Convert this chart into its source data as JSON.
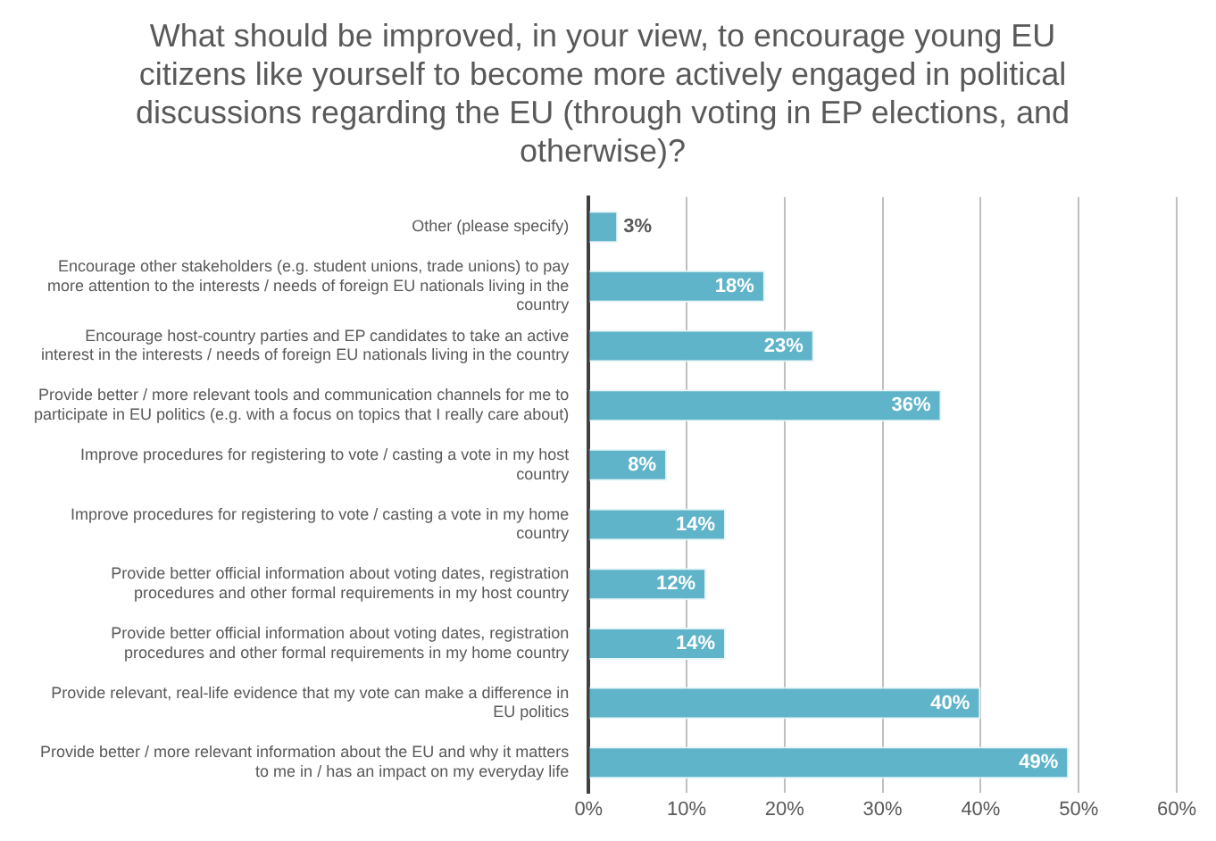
{
  "chart_data": {
    "type": "bar",
    "orientation": "horizontal",
    "title": "What should be improved, in your view, to encourage young EU citizens like yourself to become more actively engaged in political discussions regarding the EU (through voting in EP elections, and otherwise)?",
    "categories": [
      "Other (please specify)",
      "Encourage other stakeholders (e.g. student unions, trade unions) to pay more attention to the interests / needs of foreign EU nationals living in the country",
      "Encourage host-country parties and EP candidates to take an active interest in the interests / needs of foreign EU nationals living in the country",
      "Provide better / more relevant tools and communication channels for me to participate in EU politics (e.g. with a focus on topics that I really care about)",
      "Improve procedures for registering to vote / casting a vote in my host country",
      "Improve procedures for registering to vote / casting a vote in my home country",
      "Provide better official information about voting dates, registration procedures and other formal requirements in my host country",
      "Provide better official information about voting dates, registration procedures and other formal requirements in my home country",
      "Provide relevant, real-life evidence that my vote can make a difference in EU politics",
      "Provide better / more relevant information about the EU and why it matters to me in / has an impact on my everyday life"
    ],
    "values": [
      3,
      18,
      23,
      36,
      8,
      14,
      12,
      14,
      40,
      49
    ],
    "value_labels": [
      "3%",
      "18%",
      "23%",
      "36%",
      "8%",
      "14%",
      "12%",
      "14%",
      "40%",
      "49%"
    ],
    "color": "#5fb4c9",
    "xlim": [
      0,
      60
    ],
    "xticks": [
      {
        "value": 0,
        "label": "0%"
      },
      {
        "value": 10,
        "label": "10%"
      },
      {
        "value": 20,
        "label": "20%"
      },
      {
        "value": 30,
        "label": "30%"
      },
      {
        "value": 40,
        "label": "40%"
      },
      {
        "value": 50,
        "label": "50%"
      },
      {
        "value": 60,
        "label": "60%"
      }
    ],
    "grid": "x",
    "legend": false
  }
}
